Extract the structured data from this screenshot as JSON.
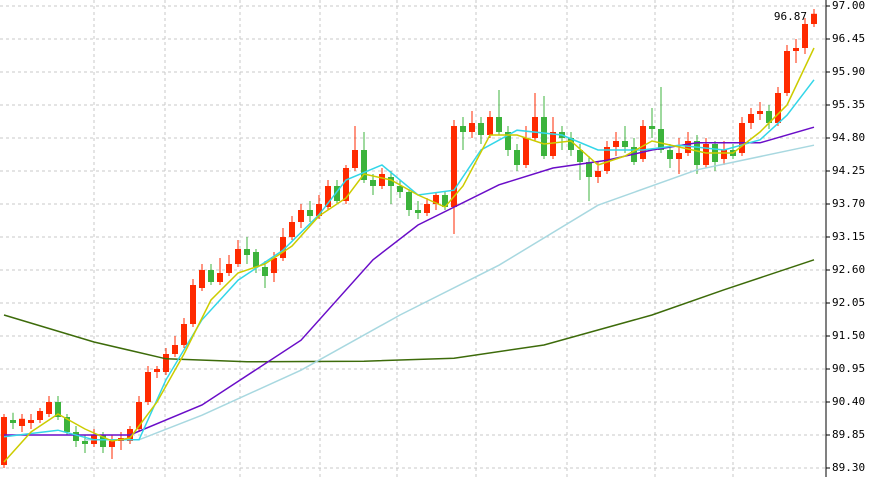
{
  "chart_data": {
    "type": "candlestick",
    "annotation": "96.87",
    "ylim": [
      89.3,
      97.0
    ],
    "yticks": [
      {
        "value": 97.0,
        "label": "97.00"
      },
      {
        "value": 96.45,
        "label": "96.45"
      },
      {
        "value": 95.9,
        "label": "95.90"
      },
      {
        "value": 95.35,
        "label": "95.35"
      },
      {
        "value": 94.8,
        "label": "94.80"
      },
      {
        "value": 94.25,
        "label": "94.25"
      },
      {
        "value": 93.7,
        "label": "93.70"
      },
      {
        "value": 93.15,
        "label": "93.15"
      },
      {
        "value": 92.6,
        "label": "92.60"
      },
      {
        "value": 92.05,
        "label": "92.05"
      },
      {
        "value": 91.5,
        "label": "91.50"
      },
      {
        "value": 90.95,
        "label": "90.95"
      },
      {
        "value": 90.4,
        "label": "90.40"
      },
      {
        "value": 89.85,
        "label": "89.85"
      },
      {
        "value": 89.3,
        "label": "89.30"
      }
    ],
    "grid": true,
    "up_color": "#ff2a00",
    "down_color": "#3cb33c",
    "open": [
      89.35,
      90.1,
      90.0,
      90.05,
      90.1,
      90.2,
      90.4,
      90.15,
      89.9,
      89.75,
      89.7,
      89.85,
      89.65,
      89.75,
      89.75,
      89.95,
      90.4,
      90.9,
      90.9,
      91.2,
      91.35,
      91.7,
      92.3,
      92.6,
      92.4,
      92.55,
      92.7,
      92.95,
      92.9,
      92.65,
      92.55,
      92.8,
      93.15,
      93.4,
      93.6,
      93.5,
      93.65,
      94.0,
      93.75,
      94.3,
      94.6,
      94.1,
      94.0,
      94.15,
      94.0,
      93.9,
      93.6,
      93.55,
      93.7,
      93.85,
      93.65,
      95.0,
      94.9,
      95.05,
      94.85,
      95.15,
      94.9,
      94.6,
      94.35,
      94.8,
      95.15,
      94.5,
      94.9,
      94.8,
      94.6,
      94.4,
      94.15,
      94.25,
      94.65,
      94.75,
      94.65,
      94.45,
      95.0,
      94.95,
      94.6,
      94.45,
      94.55,
      94.75,
      94.35,
      94.7,
      94.45,
      94.6,
      94.55,
      95.05,
      95.2,
      95.25,
      95.05,
      95.55,
      96.25,
      96.3,
      96.7
    ],
    "high": [
      90.2,
      90.22,
      90.2,
      90.2,
      90.3,
      90.5,
      90.5,
      90.2,
      90.0,
      89.85,
      89.95,
      89.9,
      89.85,
      89.9,
      90.0,
      90.5,
      91.0,
      91.0,
      91.3,
      91.5,
      91.8,
      92.45,
      92.7,
      92.7,
      92.8,
      92.85,
      93.1,
      93.15,
      92.95,
      92.75,
      92.9,
      93.3,
      93.5,
      93.7,
      93.75,
      93.85,
      94.1,
      94.1,
      94.35,
      95.0,
      94.9,
      94.2,
      94.3,
      94.25,
      94.1,
      93.95,
      93.75,
      93.8,
      93.9,
      93.9,
      95.1,
      95.15,
      95.25,
      95.15,
      95.25,
      95.6,
      95.0,
      94.7,
      95.0,
      95.55,
      95.5,
      95.15,
      95.0,
      94.9,
      94.7,
      94.5,
      94.4,
      94.75,
      94.9,
      95.0,
      94.8,
      95.1,
      95.3,
      95.65,
      94.7,
      94.8,
      94.9,
      94.85,
      94.8,
      94.75,
      94.75,
      94.7,
      95.15,
      95.3,
      95.4,
      95.35,
      95.65,
      96.35,
      96.45,
      96.8,
      96.95
    ],
    "low": [
      89.3,
      89.95,
      89.9,
      89.95,
      90.05,
      90.15,
      90.1,
      89.85,
      89.65,
      89.55,
      89.65,
      89.55,
      89.45,
      89.6,
      89.7,
      89.9,
      90.35,
      90.8,
      90.85,
      91.15,
      91.3,
      91.65,
      92.25,
      92.35,
      92.35,
      92.5,
      92.65,
      92.7,
      92.55,
      92.3,
      92.4,
      92.75,
      93.1,
      93.3,
      93.4,
      93.45,
      93.6,
      93.7,
      93.7,
      94.25,
      94.05,
      93.85,
      93.95,
      93.7,
      93.8,
      93.5,
      93.45,
      93.5,
      93.6,
      93.6,
      93.2,
      94.6,
      94.8,
      94.7,
      94.8,
      94.85,
      94.5,
      94.25,
      94.3,
      94.75,
      94.45,
      94.45,
      94.6,
      94.5,
      94.1,
      93.75,
      94.05,
      94.2,
      94.5,
      94.55,
      94.35,
      94.4,
      94.8,
      94.55,
      94.3,
      94.2,
      94.5,
      94.2,
      94.3,
      94.25,
      94.35,
      94.45,
      94.5,
      94.95,
      95.1,
      94.95,
      95.0,
      95.5,
      96.05,
      96.2,
      96.65
    ],
    "close": [
      90.15,
      90.05,
      90.12,
      90.1,
      90.25,
      90.4,
      90.15,
      89.9,
      89.75,
      89.7,
      89.85,
      89.65,
      89.75,
      89.8,
      89.95,
      90.4,
      90.9,
      90.95,
      91.2,
      91.35,
      91.7,
      92.35,
      92.6,
      92.4,
      92.55,
      92.7,
      92.95,
      92.85,
      92.65,
      92.5,
      92.8,
      93.15,
      93.4,
      93.6,
      93.5,
      93.7,
      94.0,
      93.75,
      94.3,
      94.6,
      94.1,
      94.0,
      94.2,
      94.0,
      93.9,
      93.6,
      93.55,
      93.7,
      93.85,
      93.65,
      95.0,
      94.9,
      95.05,
      94.85,
      95.15,
      94.9,
      94.6,
      94.35,
      94.8,
      95.15,
      94.5,
      94.9,
      94.8,
      94.6,
      94.4,
      94.15,
      94.25,
      94.65,
      94.75,
      94.65,
      94.4,
      95.0,
      94.95,
      94.6,
      94.45,
      94.55,
      94.75,
      94.35,
      94.7,
      94.4,
      94.6,
      94.5,
      95.05,
      95.2,
      95.25,
      95.05,
      95.55,
      96.25,
      96.3,
      96.7,
      96.87
    ],
    "series": [
      {
        "color": "#3d6b0a",
        "x": [
          0,
          10,
          18,
          27,
          40,
          50,
          60,
          66,
          72,
          80,
          90
        ],
        "values": [
          91.85,
          91.4,
          91.12,
          91.07,
          91.08,
          91.13,
          91.35,
          91.6,
          91.85,
          92.27,
          92.77
        ]
      },
      {
        "color": "#a8d8e0",
        "x": [
          9,
          15,
          22,
          33,
          44,
          55,
          66,
          77,
          90
        ],
        "values": [
          89.77,
          89.77,
          90.18,
          90.93,
          91.85,
          92.68,
          93.68,
          94.27,
          94.68
        ]
      },
      {
        "color": "#6a0dc8",
        "x": [
          0,
          14,
          22,
          33,
          41,
          46,
          55,
          61,
          67,
          72,
          77,
          84,
          90
        ],
        "values": [
          89.85,
          89.85,
          90.35,
          91.43,
          92.77,
          93.35,
          94.02,
          94.3,
          94.43,
          94.6,
          94.72,
          94.72,
          94.98
        ]
      },
      {
        "color": "#33d6e8",
        "x": [
          0,
          6,
          10,
          15,
          18,
          22,
          26,
          31,
          35,
          38,
          42,
          46,
          50,
          53,
          57,
          62,
          66,
          71,
          75,
          80,
          84,
          87,
          90
        ],
        "values": [
          89.82,
          89.93,
          89.77,
          89.77,
          90.77,
          91.77,
          92.43,
          92.93,
          93.52,
          94.1,
          94.35,
          93.85,
          93.93,
          94.6,
          94.93,
          94.85,
          94.6,
          94.6,
          94.68,
          94.6,
          94.77,
          95.18,
          95.77
        ]
      },
      {
        "color": "#cccc00",
        "x": [
          0,
          3,
          6,
          9,
          12,
          14,
          17,
          20,
          23,
          26,
          29,
          32,
          35,
          38,
          40,
          43,
          46,
          49,
          51,
          54,
          57,
          60,
          63,
          66,
          69,
          72,
          75,
          78,
          81,
          84,
          87,
          90
        ],
        "values": [
          89.4,
          89.9,
          90.2,
          89.95,
          89.75,
          89.8,
          90.4,
          91.2,
          92.1,
          92.55,
          92.7,
          93.0,
          93.5,
          93.8,
          94.2,
          94.1,
          93.85,
          93.65,
          94.0,
          94.85,
          94.85,
          94.7,
          94.75,
          94.35,
          94.5,
          94.75,
          94.65,
          94.55,
          94.55,
          94.9,
          95.35,
          96.3
        ]
      }
    ]
  }
}
